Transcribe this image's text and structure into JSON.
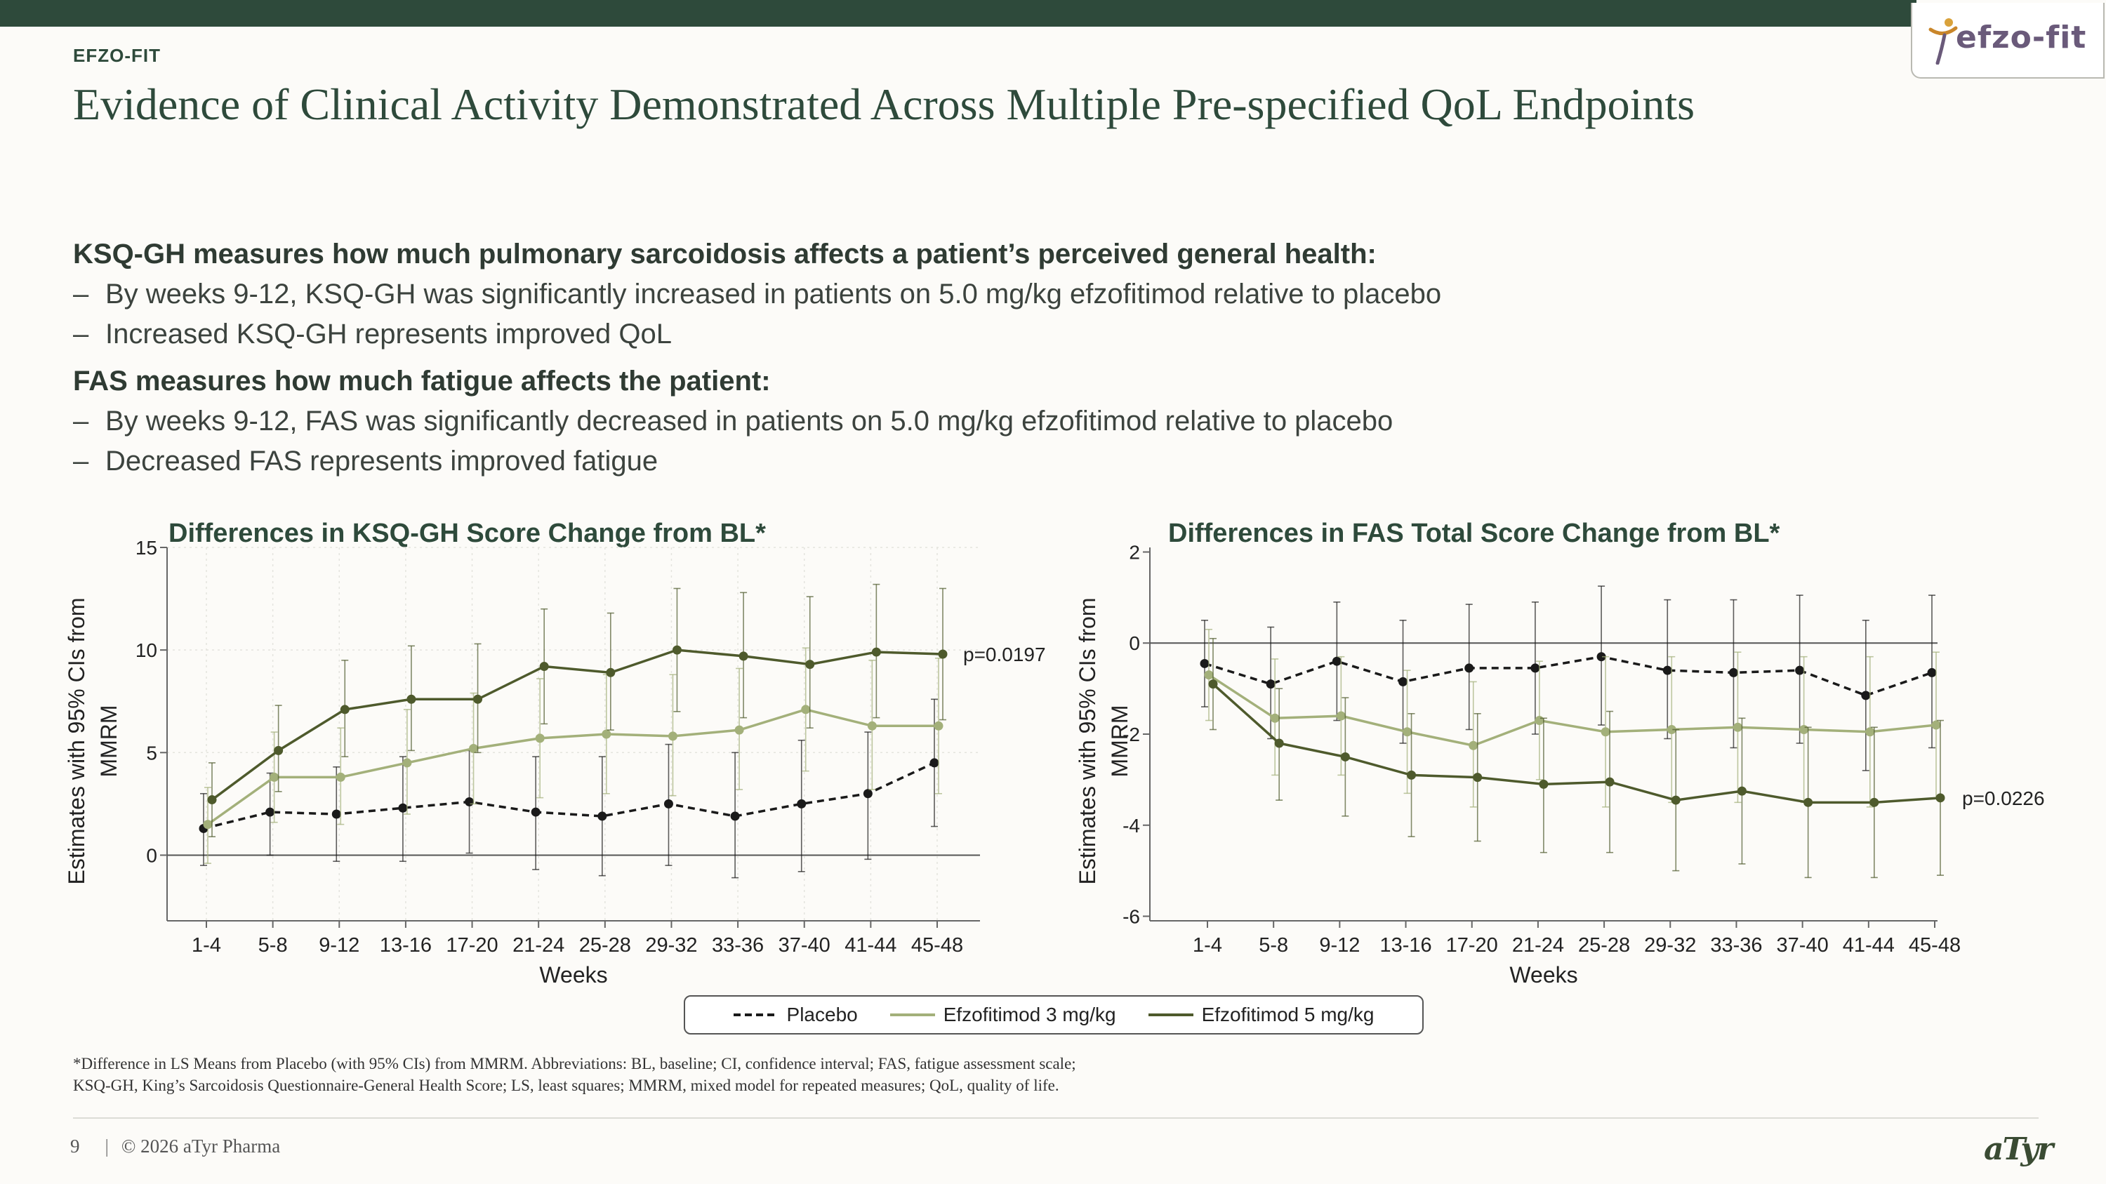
{
  "header": {
    "section_tag": "EFZO-FIT",
    "title": "Evidence of Clinical Activity Demonstrated Across Multiple Pre-specified QoL Endpoints",
    "logo_text": "efzo-fit"
  },
  "body_text": {
    "ksq_heading": "KSQ-GH measures how much pulmonary sarcoidosis affects a patient’s perceived general health:",
    "ksq_bullets": [
      "By weeks 9-12, KSQ-GH was significantly increased in patients on 5.0 mg/kg efzofitimod relative to placebo",
      "Increased KSQ-GH represents improved QoL"
    ],
    "fas_heading": "FAS measures how much fatigue affects the patient:",
    "fas_bullets": [
      "By weeks 9-12, FAS was significantly decreased in patients on 5.0 mg/kg efzofitimod relative to placebo",
      "Decreased FAS represents improved fatigue"
    ],
    "dash": "–"
  },
  "chart_data": [
    {
      "type": "line",
      "title": "Differences in KSQ-GH Score Change from BL*",
      "xlabel": "Weeks",
      "ylabel": "Estimates with 95% CIs from MMRM",
      "ylim": [
        -3.2,
        15
      ],
      "yticks": [
        0,
        5,
        10,
        15
      ],
      "grid": true,
      "categories": [
        "1-4",
        "5-8",
        "9-12",
        "13-16",
        "17-20",
        "21-24",
        "25-28",
        "29-32",
        "33-36",
        "37-40",
        "41-44",
        "45-48"
      ],
      "annotation": "p=0.0197",
      "series": [
        {
          "name": "Placebo",
          "color": "#1a1a1a",
          "style": "dashed",
          "values": [
            1.3,
            2.1,
            2.0,
            2.3,
            2.6,
            2.1,
            1.9,
            2.5,
            1.9,
            2.5,
            3.0,
            4.5
          ],
          "ci_low": [
            -0.5,
            0.0,
            -0.3,
            -0.3,
            0.1,
            -0.7,
            -1.0,
            -0.5,
            -1.1,
            -0.8,
            -0.2,
            1.4
          ],
          "ci_high": [
            3.0,
            4.0,
            4.3,
            4.8,
            5.1,
            4.8,
            4.8,
            5.4,
            5.0,
            5.6,
            6.0,
            7.6
          ]
        },
        {
          "name": "Efzofitimod 3 mg/kg",
          "color": "#a3b07a",
          "style": "solid",
          "values": [
            1.5,
            3.8,
            3.8,
            4.5,
            5.2,
            5.7,
            5.9,
            5.8,
            6.1,
            7.1,
            6.3,
            6.3
          ],
          "ci_low": [
            -0.4,
            1.6,
            1.5,
            2.0,
            2.5,
            2.8,
            3.0,
            2.9,
            3.2,
            4.1,
            3.2,
            3.0
          ],
          "ci_high": [
            3.3,
            6.0,
            6.2,
            7.1,
            7.9,
            8.6,
            8.8,
            8.8,
            9.1,
            10.1,
            9.5,
            9.6
          ]
        },
        {
          "name": "Efzofitimod 5 mg/kg",
          "color": "#4e5a2c",
          "style": "solid",
          "values": [
            2.7,
            5.1,
            7.1,
            7.6,
            7.6,
            9.2,
            8.9,
            10.0,
            9.7,
            9.3,
            9.9,
            9.8
          ],
          "ci_low": [
            0.9,
            3.1,
            4.8,
            5.1,
            5.0,
            6.4,
            6.1,
            7.0,
            6.7,
            6.2,
            6.7,
            6.6
          ],
          "ci_high": [
            4.5,
            7.3,
            9.5,
            10.2,
            10.3,
            12.0,
            11.8,
            13.0,
            12.8,
            12.6,
            13.2,
            13.0
          ]
        }
      ]
    },
    {
      "type": "line",
      "title": "Differences in FAS Total Score Change from BL*",
      "xlabel": "Weeks",
      "ylabel": "Estimates with 95% CIs from MMRM",
      "ylim": [
        -6.1,
        2.1
      ],
      "yticks": [
        -6,
        -4,
        -2,
        0,
        2
      ],
      "grid": false,
      "reference_line": 0,
      "categories": [
        "1-4",
        "5-8",
        "9-12",
        "13-16",
        "17-20",
        "21-24",
        "25-28",
        "29-32",
        "33-36",
        "37-40",
        "41-44",
        "45-48"
      ],
      "annotation": "p=0.0226",
      "series": [
        {
          "name": "Placebo",
          "color": "#1a1a1a",
          "style": "dashed",
          "values": [
            -0.45,
            -0.9,
            -0.4,
            -0.85,
            -0.55,
            -0.55,
            -0.3,
            -0.6,
            -0.65,
            -0.6,
            -1.15,
            -0.65
          ],
          "ci_low": [
            -1.4,
            -2.1,
            -1.7,
            -2.2,
            -1.9,
            -2.0,
            -1.8,
            -2.1,
            -2.3,
            -2.2,
            -2.8,
            -2.3
          ],
          "ci_high": [
            0.5,
            0.35,
            0.9,
            0.5,
            0.85,
            0.9,
            1.25,
            0.95,
            0.95,
            1.05,
            0.5,
            1.05
          ]
        },
        {
          "name": "Efzofitimod 3 mg/kg",
          "color": "#a3b07a",
          "style": "solid",
          "values": [
            -0.7,
            -1.65,
            -1.6,
            -1.95,
            -2.25,
            -1.7,
            -1.95,
            -1.9,
            -1.85,
            -1.9,
            -1.95,
            -1.8
          ],
          "ci_low": [
            -1.7,
            -2.9,
            -2.9,
            -3.3,
            -3.6,
            -3.0,
            -3.6,
            -3.5,
            -3.5,
            -3.5,
            -3.6,
            -3.4
          ],
          "ci_high": [
            0.3,
            -0.35,
            -0.3,
            -0.6,
            -0.85,
            -0.4,
            -0.3,
            -0.3,
            -0.2,
            -0.3,
            -0.3,
            -0.2
          ]
        },
        {
          "name": "Efzofitimod 5 mg/kg",
          "color": "#4e5a2c",
          "style": "solid",
          "values": [
            -0.9,
            -2.2,
            -2.5,
            -2.9,
            -2.95,
            -3.1,
            -3.05,
            -3.45,
            -3.25,
            -3.5,
            -3.5,
            -3.4
          ],
          "ci_low": [
            -1.9,
            -3.45,
            -3.8,
            -4.25,
            -4.35,
            -4.6,
            -4.6,
            -5.0,
            -4.85,
            -5.15,
            -5.15,
            -5.1
          ],
          "ci_high": [
            0.1,
            -1.0,
            -1.2,
            -1.55,
            -1.55,
            -1.65,
            -1.5,
            -1.9,
            -1.65,
            -1.85,
            -1.85,
            -1.7
          ]
        }
      ]
    }
  ],
  "legend": {
    "items": [
      {
        "label": "Placebo",
        "color": "#1a1a1a",
        "style": "dashed"
      },
      {
        "label": "Efzofitimod 3 mg/kg",
        "color": "#a3b07a",
        "style": "solid"
      },
      {
        "label": "Efzofitimod 5 mg/kg",
        "color": "#4e5a2c",
        "style": "solid"
      }
    ]
  },
  "footnote": {
    "line1": "*Difference in LS Means from Placebo (with 95% CIs) from MMRM. Abbreviations: BL, baseline; CI, confidence interval; FAS, fatigue assessment scale;",
    "line2": "KSQ-GH, King’s Sarcoidosis Questionnaire-General Health Score; LS, least squares; MMRM, mixed model for repeated measures; QoL, quality of life."
  },
  "footer": {
    "page_number": "9",
    "separator": "|",
    "copyright": "© 2026 aTyr Pharma",
    "company_logo": "aTyr"
  }
}
